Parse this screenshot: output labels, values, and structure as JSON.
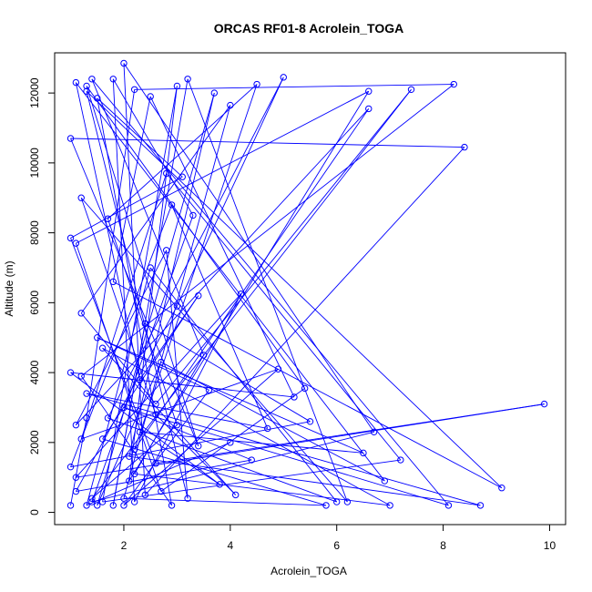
{
  "chart_data": {
    "type": "line",
    "title": "ORCAS RF01-8 Acrolein_TOGA",
    "xlabel": "Acrolein_TOGA",
    "ylabel": "Altitude (m)",
    "xlim": [
      0.7,
      10.3
    ],
    "ylim": [
      -350,
      13150
    ],
    "xticks": [
      2,
      4,
      6,
      8,
      10
    ],
    "yticks": [
      0,
      2000,
      4000,
      6000,
      8000,
      10000,
      12000
    ],
    "grid": false,
    "legend": "none",
    "marker": "open-circle",
    "color": "#0000ff",
    "series": [
      {
        "points": [
          [
            1.0,
            200
          ],
          [
            1.3,
            2700
          ],
          [
            2.2,
            12100
          ],
          [
            8.2,
            12250
          ],
          [
            1.2,
            3900
          ],
          [
            2.9,
            200
          ],
          [
            1.5,
            11850
          ],
          [
            3.1,
            9600
          ],
          [
            1.0,
            7850
          ],
          [
            2.6,
            1400
          ],
          [
            9.9,
            3100
          ],
          [
            1.1,
            1000
          ],
          [
            4.2,
            6250
          ],
          [
            2.2,
            300
          ],
          [
            1.8,
            12400
          ],
          [
            3.3,
            8500
          ],
          [
            1.4,
            300
          ],
          [
            6.7,
            2300
          ],
          [
            2.0,
            12850
          ],
          [
            2.4,
            500
          ],
          [
            8.4,
            10450
          ],
          [
            1.0,
            10700
          ],
          [
            3.4,
            1900
          ],
          [
            1.3,
            12200
          ],
          [
            5.4,
            3550
          ],
          [
            2.7,
            600
          ],
          [
            1.1,
            7700
          ],
          [
            6.6,
            12050
          ],
          [
            2.1,
            900
          ],
          [
            3.0,
            12200
          ],
          [
            1.6,
            300
          ],
          [
            7.2,
            1500
          ],
          [
            2.8,
            9700
          ],
          [
            1.2,
            2100
          ],
          [
            4.9,
            4100
          ],
          [
            2.0,
            200
          ],
          [
            3.6,
            3500
          ],
          [
            1.5,
            5000
          ],
          [
            6.5,
            1700
          ],
          [
            2.3,
            2300
          ],
          [
            3.8,
            800
          ],
          [
            1.0,
            4000
          ],
          [
            5.2,
            3300
          ],
          [
            2.5,
            11900
          ],
          [
            1.8,
            6600
          ],
          [
            9.1,
            700
          ],
          [
            1.3,
            12050
          ],
          [
            3.2,
            400
          ],
          [
            2.8,
            7500
          ],
          [
            1.1,
            2500
          ],
          [
            6.6,
            11550
          ],
          [
            2.2,
            1800
          ],
          [
            4.5,
            12250
          ],
          [
            1.7,
            8400
          ],
          [
            3.0,
            2500
          ],
          [
            1.4,
            400
          ],
          [
            7.4,
            12100
          ],
          [
            2.6,
            3100
          ],
          [
            1.2,
            5700
          ],
          [
            4.0,
            11650
          ],
          [
            2.0,
            400
          ],
          [
            5.8,
            200
          ],
          [
            1.6,
            2100
          ],
          [
            3.4,
            6200
          ],
          [
            2.3,
            3800
          ],
          [
            1.1,
            12300
          ],
          [
            6.9,
            900
          ],
          [
            2.7,
            4300
          ],
          [
            1.5,
            200
          ],
          [
            3.7,
            12000
          ],
          [
            2.1,
            1600
          ],
          [
            8.7,
            200
          ],
          [
            1.3,
            3400
          ],
          [
            4.7,
            2400
          ],
          [
            2.9,
            8800
          ],
          [
            1.0,
            1300
          ],
          [
            5.5,
            2600
          ],
          [
            2.4,
            5400
          ],
          [
            1.8,
            200
          ],
          [
            3.2,
            12400
          ],
          [
            6.2,
            300
          ],
          [
            1.2,
            9000
          ],
          [
            2.6,
            2800
          ],
          [
            4.1,
            500
          ],
          [
            1.6,
            4700
          ],
          [
            7.0,
            200
          ],
          [
            2.2,
            1100
          ],
          [
            3.5,
            4500
          ],
          [
            1.4,
            12400
          ],
          [
            8.1,
            200
          ],
          [
            2.0,
            3000
          ],
          [
            4.4,
            1500
          ],
          [
            1.1,
            600
          ],
          [
            3.0,
            5900
          ],
          [
            5.0,
            12450
          ],
          [
            1.7,
            2700
          ],
          [
            6.0,
            300
          ],
          [
            2.5,
            7000
          ],
          [
            1.3,
            200
          ],
          [
            4.0,
            2000
          ]
        ]
      }
    ]
  }
}
